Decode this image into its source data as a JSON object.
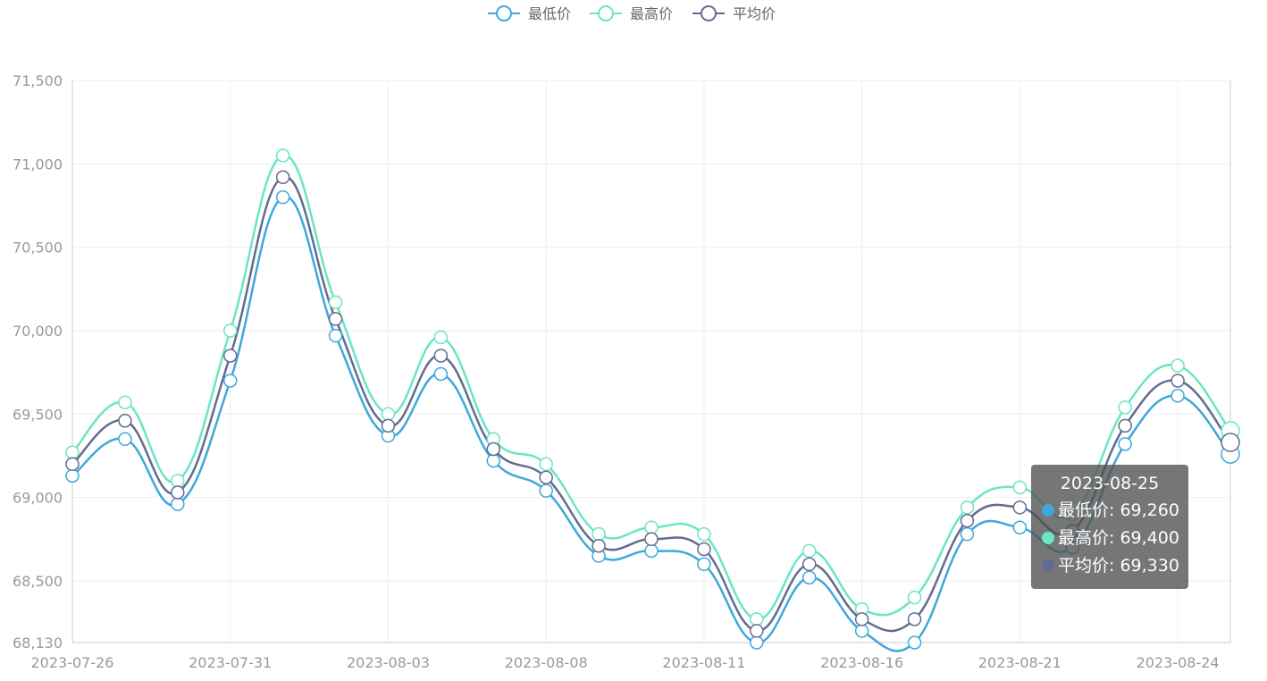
{
  "chart_data": {
    "type": "line",
    "smooth": true,
    "x": [
      "2023-07-26",
      "2023-07-27",
      "2023-07-28",
      "2023-07-31",
      "2023-08-01",
      "2023-08-02",
      "2023-08-03",
      "2023-08-04",
      "2023-08-07",
      "2023-08-08",
      "2023-08-09",
      "2023-08-10",
      "2023-08-11",
      "2023-08-14",
      "2023-08-15",
      "2023-08-16",
      "2023-08-17",
      "2023-08-18",
      "2023-08-21",
      "2023-08-22",
      "2023-08-23",
      "2023-08-24",
      "2023-08-25"
    ],
    "xticks": [
      "2023-07-26",
      "2023-07-31",
      "2023-08-03",
      "2023-08-08",
      "2023-08-11",
      "2023-08-16",
      "2023-08-21",
      "2023-08-24"
    ],
    "ylim": [
      68130,
      71500
    ],
    "yticks": [
      68130,
      68500,
      69000,
      69500,
      70000,
      70500,
      71000,
      71500
    ],
    "ytick_labels": [
      "68,130",
      "68,500",
      "69,000",
      "69,500",
      "70,000",
      "70,500",
      "71,000",
      "71,500"
    ],
    "grid": true,
    "legend": "top-center",
    "series": [
      {
        "name": "最低价",
        "color": "#3fa7dc",
        "values": [
          69130,
          69350,
          68960,
          69700,
          70800,
          69970,
          69370,
          69740,
          69220,
          69040,
          68650,
          68680,
          68600,
          68130,
          68520,
          68200,
          68130,
          68780,
          68820,
          68700,
          69320,
          69610,
          69260
        ]
      },
      {
        "name": "最高价",
        "color": "#6be6c1",
        "values": [
          69270,
          69570,
          69100,
          70000,
          71050,
          70170,
          69500,
          69960,
          69350,
          69200,
          68780,
          68820,
          68780,
          68270,
          68680,
          68330,
          68400,
          68940,
          69060,
          68900,
          69540,
          69790,
          69400
        ]
      },
      {
        "name": "平均价",
        "color": "#626c91",
        "values": [
          69200,
          69460,
          69030,
          69850,
          70920,
          70070,
          69430,
          69850,
          69290,
          69120,
          68710,
          68750,
          68690,
          68200,
          68600,
          68270,
          68270,
          68860,
          68940,
          68800,
          69430,
          69700,
          69330
        ]
      }
    ]
  },
  "tooltip": {
    "title": "2023-08-25",
    "rows": [
      {
        "label": "最低价: 69,260",
        "color": "#3fa7dc"
      },
      {
        "label": "最高价: 69,400",
        "color": "#6be6c1"
      },
      {
        "label": "平均价: 69,330",
        "color": "#626c91"
      }
    ]
  }
}
